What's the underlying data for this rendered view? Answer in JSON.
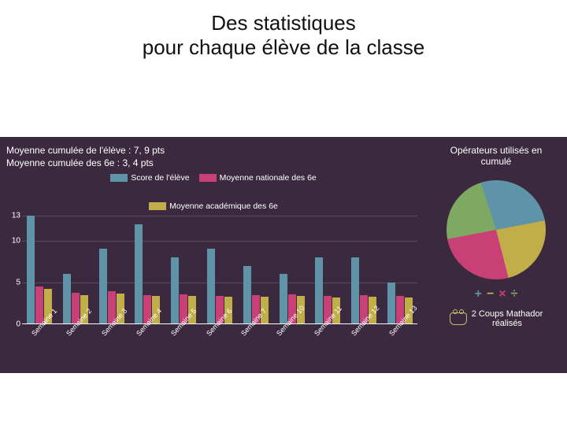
{
  "title": {
    "line1": "Des statistiques",
    "line2": "pour chaque élève de la classe",
    "fontsize": 26,
    "color": "#111111"
  },
  "dashboard": {
    "background_color": "#3b2a3f",
    "left": {
      "stat1_label": "Moyenne cumulée de l'élève :",
      "stat1_value": "7, 9 pts",
      "stat2_label": "Moyenne cumulée des 6e :",
      "stat2_value": "3, 4 pts",
      "legend": [
        {
          "label": "Score de l'élève",
          "color": "#5f93a8"
        },
        {
          "label": "Moyenne nationale des 6e",
          "color": "#c94076"
        },
        {
          "label": "Moyenne académique des 6e",
          "color": "#c2ae49"
        }
      ],
      "chart": {
        "type": "bar",
        "ylim": [
          0,
          13
        ],
        "yticks": [
          0,
          5,
          10,
          13
        ],
        "grid_color": "rgba(255,255,255,0.15)",
        "baseline_color": "#ffffff",
        "categories": [
          "Semaine 1",
          "Semaine 2",
          "Semaine 3",
          "Semaine 4",
          "Semaine 5",
          "Semaine 6",
          "Semaine 7",
          "Semaine 10",
          "Semaine 11",
          "Semaine 12",
          "Semaine 13"
        ],
        "series": [
          {
            "name": "Score de l'élève",
            "color": "#5f93a8",
            "values": [
              13,
              6,
              9,
              12,
              8,
              9,
              7,
              6,
              8,
              8,
              5
            ]
          },
          {
            "name": "Moyenne nationale des 6e",
            "color": "#c94076",
            "values": [
              4.5,
              3.8,
              4.0,
              3.5,
              3.6,
              3.4,
              3.5,
              3.6,
              3.4,
              3.5,
              3.4
            ]
          },
          {
            "name": "Moyenne académique des 6e",
            "color": "#c2ae49",
            "values": [
              4.2,
              3.5,
              3.7,
              3.4,
              3.4,
              3.3,
              3.3,
              3.4,
              3.2,
              3.3,
              3.2
            ]
          }
        ],
        "bar_width": 0.28,
        "label_fontsize": 9,
        "tick_fontsize": 10
      }
    },
    "right": {
      "title_line1": "Opérateurs utilisés en",
      "title_line2": "cumulé",
      "pie": {
        "type": "pie",
        "slices": [
          {
            "label": "+",
            "value": 27,
            "color": "#5f93a8"
          },
          {
            "label": "-",
            "value": 24,
            "color": "#c2ae49"
          },
          {
            "label": "×",
            "value": 26,
            "color": "#c94076"
          },
          {
            "label": "÷",
            "value": 23,
            "color": "#7fa862"
          }
        ],
        "border_color": "#3b2a3f",
        "border_width": 2
      },
      "ops": {
        "plus": "+",
        "minus": "−",
        "times": "×",
        "div": "÷",
        "plus_color": "#5f93a8",
        "minus_color": "#c2ae49",
        "times_color": "#c94076",
        "div_color": "#7fa862"
      },
      "badge_count": "2",
      "badge_text_line1": "Coups Mathador",
      "badge_text_line2": "réalisés"
    }
  }
}
